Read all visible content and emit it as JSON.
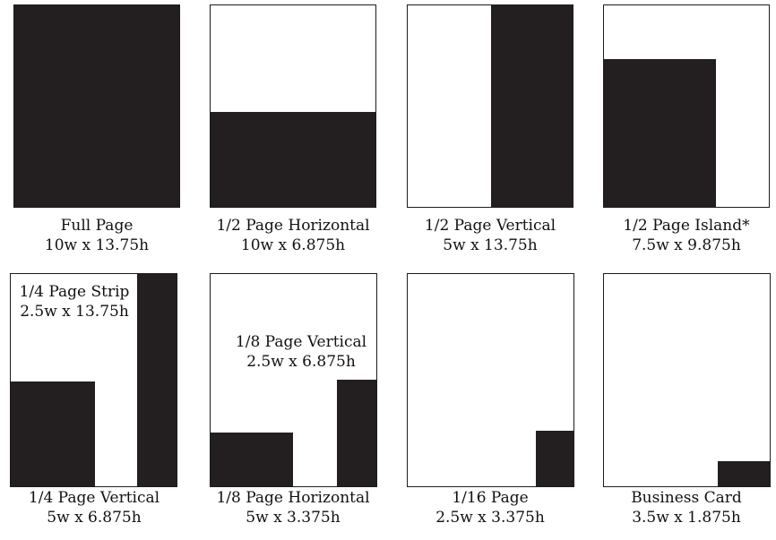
{
  "colors": {
    "ad_fill": "#231f20",
    "border": "#1c1c1c",
    "background": "#ffffff"
  },
  "ad_sizes": [
    {
      "name": "Full Page",
      "dimensions": "10w x 13.75h"
    },
    {
      "name": "1/2 Page Horizontal",
      "dimensions": "10w x 6.875h"
    },
    {
      "name": "1/2 Page Vertical",
      "dimensions": "5w x 13.75h"
    },
    {
      "name": "1/2 Page Island*",
      "dimensions": "7.5w x 9.875h"
    },
    {
      "name": "1/4 Page Vertical",
      "dimensions": "5w x 6.875h"
    },
    {
      "name": "1/8 Page Horizontal",
      "dimensions": "5w x 3.375h"
    },
    {
      "name": "1/16 Page",
      "dimensions": "2.5w x 3.375h"
    },
    {
      "name": "Business Card",
      "dimensions": "3.5w x 1.875h"
    }
  ],
  "inline_labels": [
    {
      "name": "1/4 Page Strip",
      "dimensions": "2.5w x 13.75h"
    },
    {
      "name": "1/8 Page Vertical",
      "dimensions": "2.5w x 6.875h"
    }
  ]
}
